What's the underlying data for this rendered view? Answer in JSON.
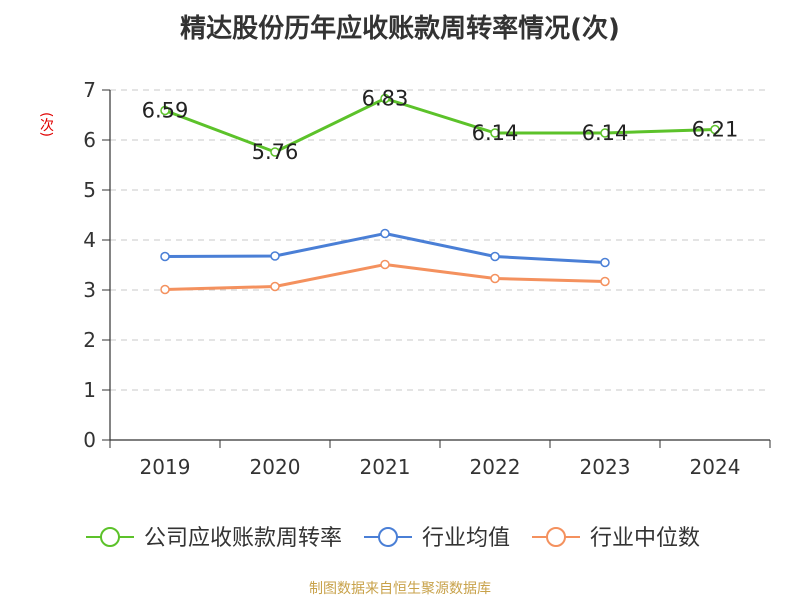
{
  "chart_data": {
    "type": "line",
    "title": "精达股份历年应收账款周转率情况(次)",
    "ylabel": "(次)",
    "xlabel": "",
    "categories": [
      "2019",
      "2020",
      "2021",
      "2022",
      "2023",
      "2024"
    ],
    "ylim": [
      0,
      7
    ],
    "yticks": [
      0,
      1,
      2,
      3,
      4,
      5,
      6,
      7
    ],
    "grid": true,
    "legend_position": "bottom",
    "series": [
      {
        "name": "公司应收账款周转率",
        "color": "#5cc22a",
        "values": [
          6.59,
          5.76,
          6.83,
          6.14,
          6.14,
          6.21
        ],
        "labels": [
          "6.59",
          "5.76",
          "6.83",
          "6.14",
          "6.14",
          "6.21"
        ]
      },
      {
        "name": "行业均值",
        "color": "#4a7fd6",
        "values": [
          3.67,
          3.68,
          4.13,
          3.67,
          3.55,
          null
        ]
      },
      {
        "name": "行业中位数",
        "color": "#f4915e",
        "values": [
          3.01,
          3.07,
          3.51,
          3.23,
          3.17,
          null
        ]
      }
    ]
  },
  "source": "制图数据来自恒生聚源数据库"
}
